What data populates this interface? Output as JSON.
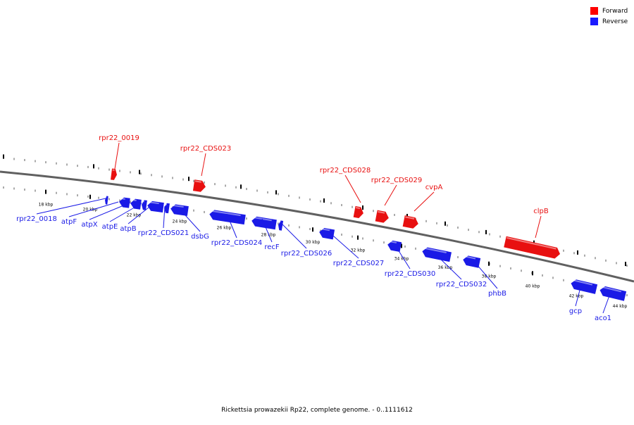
{
  "legend": {
    "forward_label": "Forward",
    "reverse_label": "Reverse",
    "forward_color": "#ff0000",
    "reverse_color": "#1a1aff"
  },
  "caption": "Rickettsia prowazekii Rp22, complete genome. - 0..1111612",
  "colors": {
    "forward": "#e81010",
    "reverse": "#1a1ae6",
    "backbone": "#808080"
  },
  "ticks": [
    "18 kbp",
    "20 kbp",
    "22 kbp",
    "24 kbp",
    "26 kbp",
    "28 kbp",
    "30 kbp",
    "32 kbp",
    "34 kbp",
    "36 kbp",
    "38 kbp",
    "40 kbp",
    "42 kbp",
    "44 kbp"
  ],
  "genes": [
    {
      "name": "rpr22_0018",
      "strand": "reverse"
    },
    {
      "name": "atpF",
      "strand": "reverse"
    },
    {
      "name": "atpX",
      "strand": "reverse"
    },
    {
      "name": "atpE",
      "strand": "reverse"
    },
    {
      "name": "atpB",
      "strand": "reverse"
    },
    {
      "name": "rpr22_CDS021",
      "strand": "reverse"
    },
    {
      "name": "dsbG",
      "strand": "reverse"
    },
    {
      "name": "rpr22_CDS024",
      "strand": "reverse"
    },
    {
      "name": "recF",
      "strand": "reverse"
    },
    {
      "name": "rpr22_CDS026",
      "strand": "reverse"
    },
    {
      "name": "rpr22_CDS027",
      "strand": "reverse"
    },
    {
      "name": "rpr22_CDS030",
      "strand": "reverse"
    },
    {
      "name": "rpr22_CDS032",
      "strand": "reverse"
    },
    {
      "name": "phbB",
      "strand": "reverse"
    },
    {
      "name": "gcp",
      "strand": "reverse"
    },
    {
      "name": "aco1",
      "strand": "reverse"
    },
    {
      "name": "rpr22_0019",
      "strand": "forward"
    },
    {
      "name": "rpr22_CDS023",
      "strand": "forward"
    },
    {
      "name": "rpr22_CDS028",
      "strand": "forward"
    },
    {
      "name": "rpr22_CDS029",
      "strand": "forward"
    },
    {
      "name": "cvpA",
      "strand": "forward"
    },
    {
      "name": "clpB",
      "strand": "forward"
    }
  ]
}
